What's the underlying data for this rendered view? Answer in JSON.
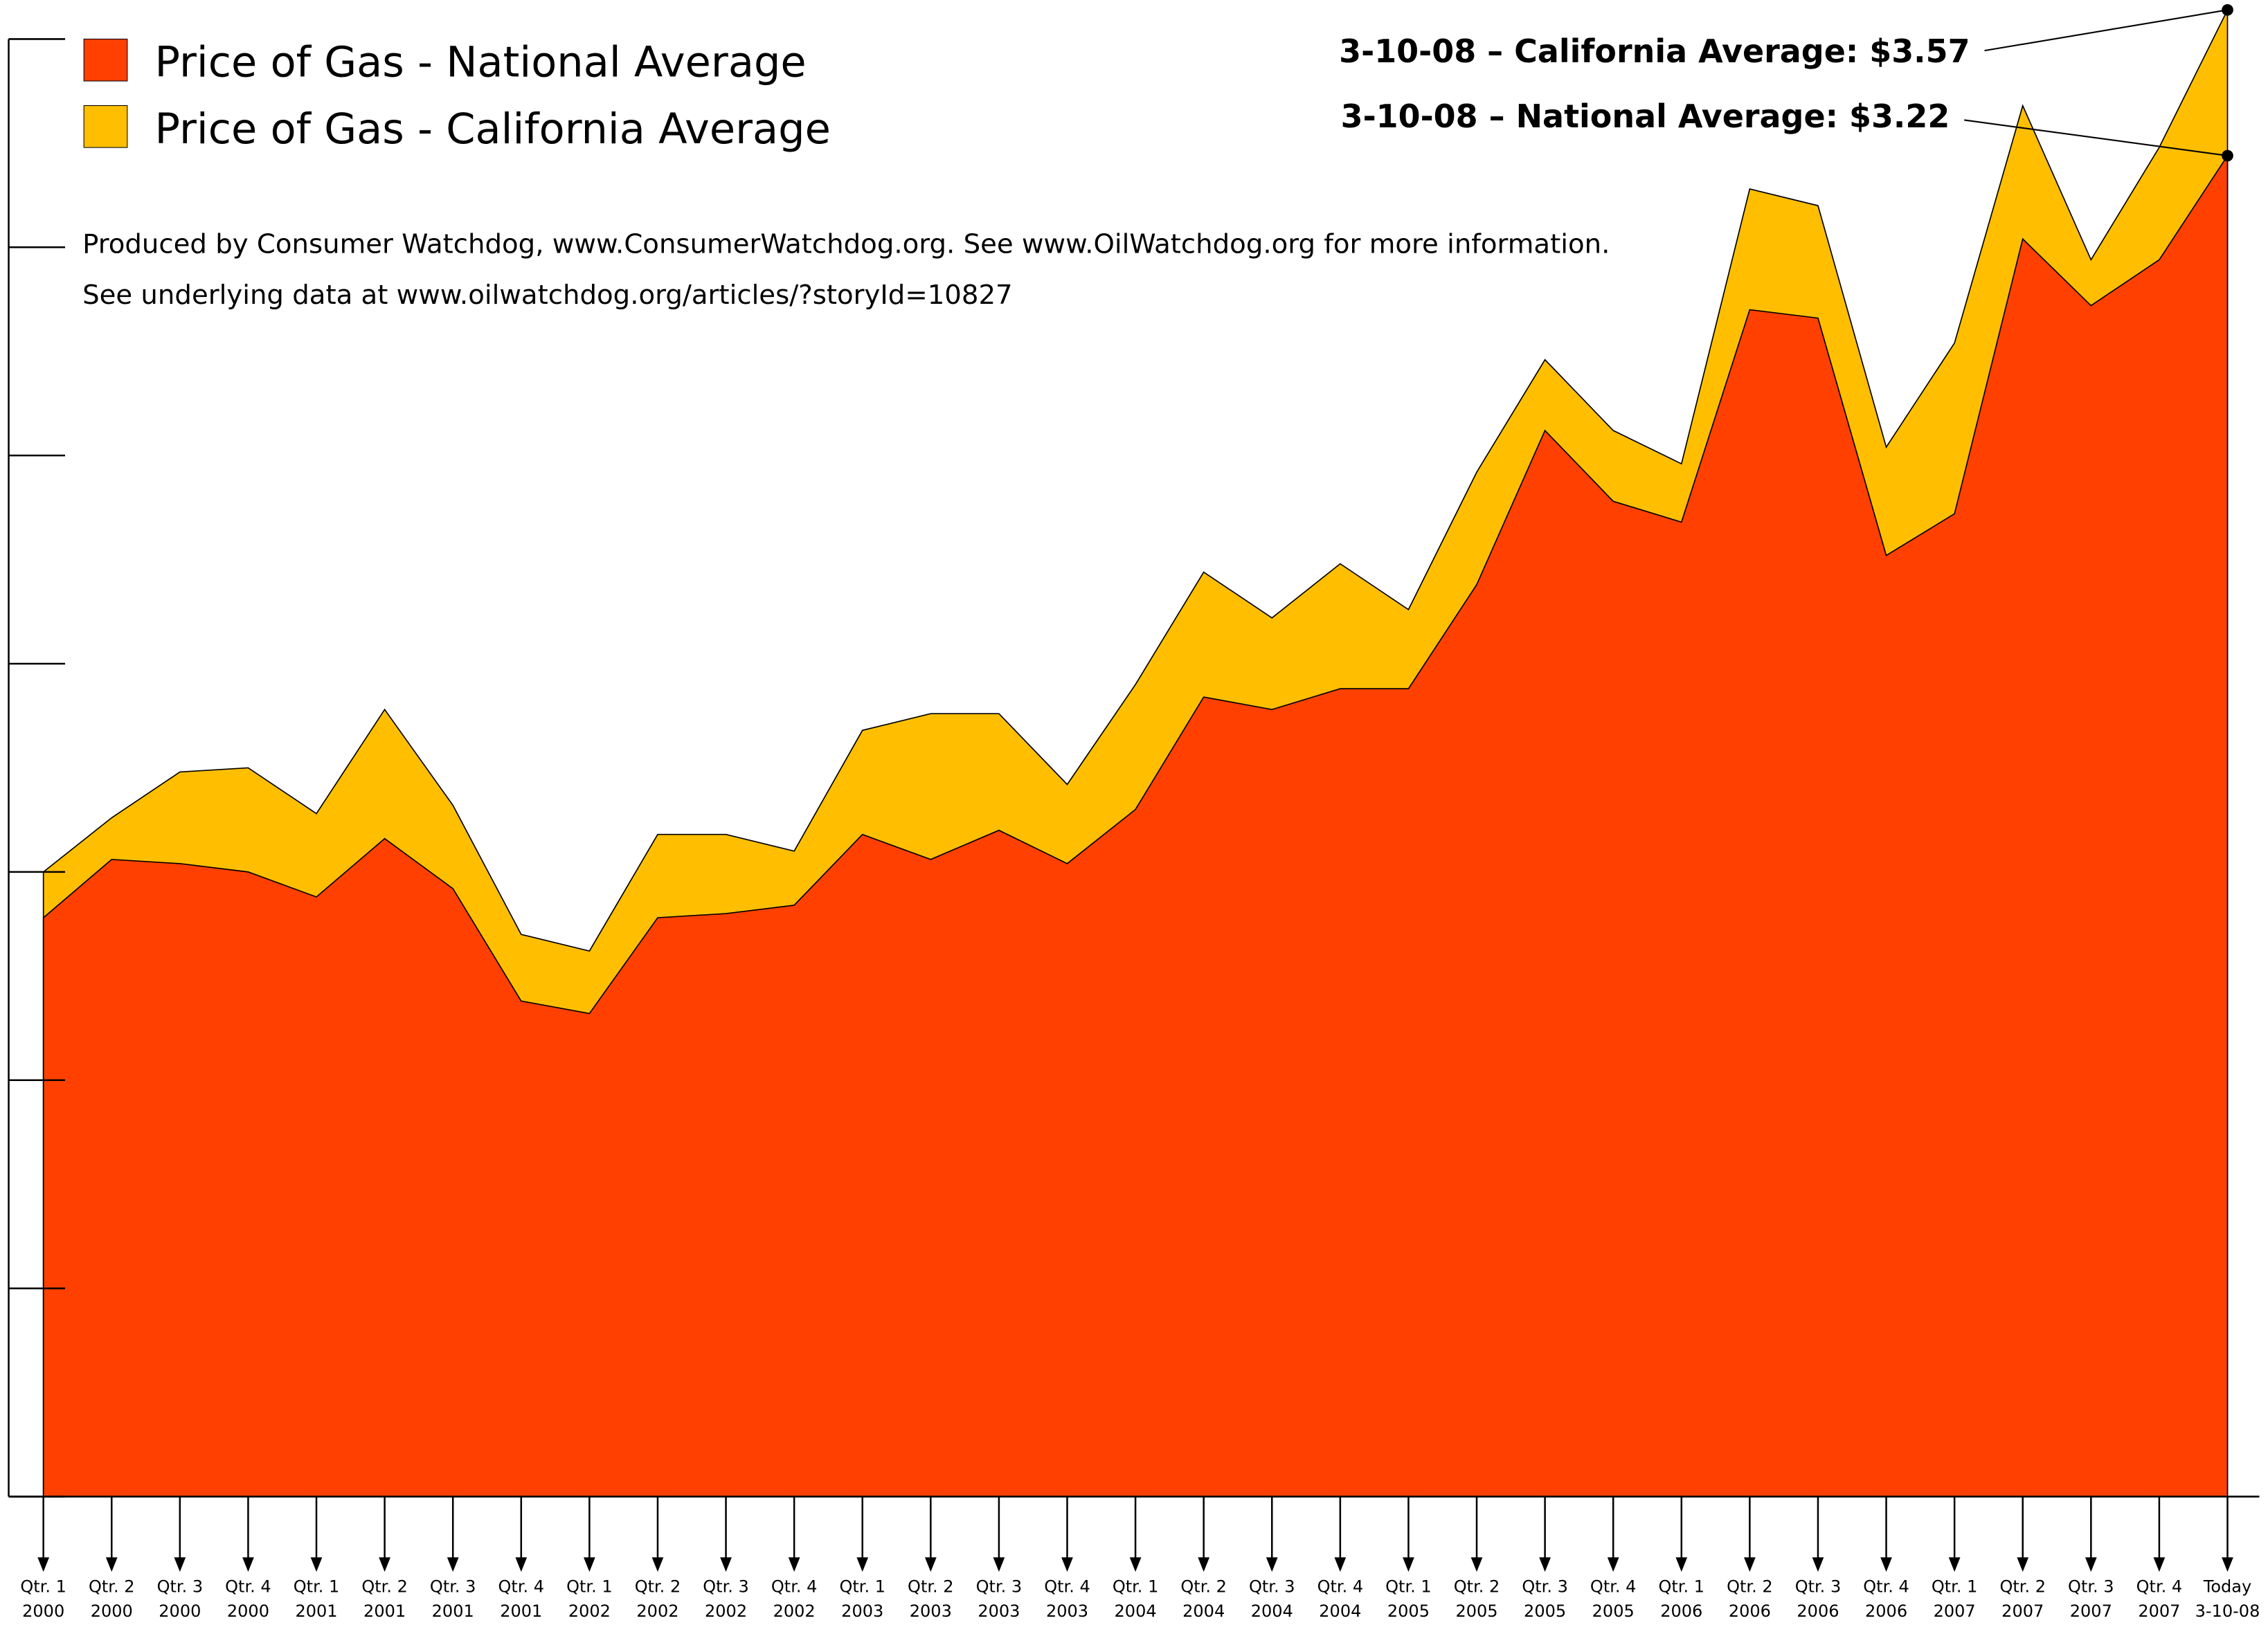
{
  "chart_data": {
    "type": "area",
    "categories": [
      [
        "Qtr. 1",
        "2000"
      ],
      [
        "Qtr. 2",
        "2000"
      ],
      [
        "Qtr. 3",
        "2000"
      ],
      [
        "Qtr. 4",
        "2000"
      ],
      [
        "Qtr. 1",
        "2001"
      ],
      [
        "Qtr. 2",
        "2001"
      ],
      [
        "Qtr. 3",
        "2001"
      ],
      [
        "Qtr. 4",
        "2001"
      ],
      [
        "Qtr. 1",
        "2002"
      ],
      [
        "Qtr. 2",
        "2002"
      ],
      [
        "Qtr. 3",
        "2002"
      ],
      [
        "Qtr. 4",
        "2002"
      ],
      [
        "Qtr. 1",
        "2003"
      ],
      [
        "Qtr. 2",
        "2003"
      ],
      [
        "Qtr. 3",
        "2003"
      ],
      [
        "Qtr. 4",
        "2003"
      ],
      [
        "Qtr. 1",
        "2004"
      ],
      [
        "Qtr. 2",
        "2004"
      ],
      [
        "Qtr. 3",
        "2004"
      ],
      [
        "Qtr. 4",
        "2004"
      ],
      [
        "Qtr. 1",
        "2005"
      ],
      [
        "Qtr. 2",
        "2005"
      ],
      [
        "Qtr. 3",
        "2005"
      ],
      [
        "Qtr. 4",
        "2005"
      ],
      [
        "Qtr. 1",
        "2006"
      ],
      [
        "Qtr. 2",
        "2006"
      ],
      [
        "Qtr. 3",
        "2006"
      ],
      [
        "Qtr. 4",
        "2006"
      ],
      [
        "Qtr. 1",
        "2007"
      ],
      [
        "Qtr. 2",
        "2007"
      ],
      [
        "Qtr. 3",
        "2007"
      ],
      [
        "Qtr. 4",
        "2007"
      ],
      [
        "Today",
        "3-10-08"
      ]
    ],
    "series": [
      {
        "name": "Price of Gas - National Average",
        "color": "#ff4000",
        "values": [
          1.39,
          1.53,
          1.52,
          1.5,
          1.44,
          1.58,
          1.46,
          1.19,
          1.16,
          1.39,
          1.4,
          1.42,
          1.59,
          1.53,
          1.6,
          1.52,
          1.65,
          1.92,
          1.89,
          1.94,
          1.94,
          2.19,
          2.56,
          2.39,
          2.34,
          2.85,
          2.83,
          2.26,
          2.36,
          3.02,
          2.86,
          2.97,
          3.22
        ]
      },
      {
        "name": "Price of Gas - California Average",
        "color": "#ffbf00",
        "values": [
          1.5,
          1.63,
          1.74,
          1.75,
          1.64,
          1.89,
          1.66,
          1.35,
          1.31,
          1.59,
          1.59,
          1.55,
          1.84,
          1.88,
          1.88,
          1.71,
          1.95,
          2.22,
          2.11,
          2.24,
          2.13,
          2.46,
          2.73,
          2.56,
          2.48,
          3.14,
          3.1,
          2.52,
          2.77,
          3.34,
          2.97,
          3.24,
          3.57
        ]
      }
    ],
    "ylim": [
      0,
      3.6
    ],
    "yticks": [
      0,
      0.5,
      1,
      1.5,
      2,
      2.5,
      3,
      3.5
    ],
    "notes": [
      "Produced by Consumer Watchdog, www.ConsumerWatchdog.org.  See www.OilWatchdog.org for more information.",
      "See underlying data at www.oilwatchdog.org/articles/?storyId=10827"
    ],
    "annotations": [
      "3-10-08 – California Average: $3.57",
      "3-10-08 – National Average: $3.22"
    ]
  }
}
